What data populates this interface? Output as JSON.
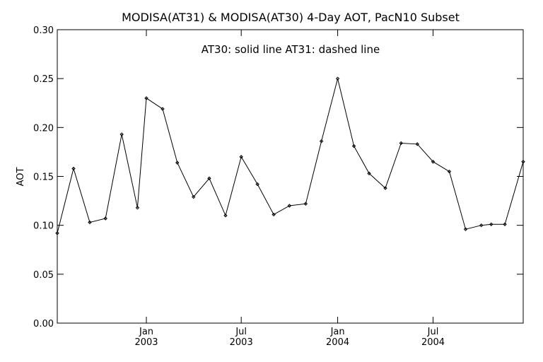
{
  "chart_data": {
    "type": "line",
    "title": "MODISA(AT31) & MODISA(AT30) 4-Day AOT, PacN10 Subset",
    "ylabel": "AOT",
    "xlabel": "",
    "annotation": "AT30: solid line    AT31: dashed line",
    "ylim": [
      0.0,
      0.3
    ],
    "yticks": [
      "0.00",
      "0.05",
      "0.10",
      "0.15",
      "0.20",
      "0.25",
      "0.30"
    ],
    "xlim": [
      "2002-07-15",
      "2004-12-20"
    ],
    "xticks": [
      {
        "date": "2003-01-01",
        "line1": "Jan",
        "line2": "2003"
      },
      {
        "date": "2003-07-01",
        "line1": "Jul",
        "line2": "2003"
      },
      {
        "date": "2004-01-01",
        "line1": "Jan",
        "line2": "2004"
      },
      {
        "date": "2004-07-01",
        "line1": "Jul",
        "line2": "2004"
      }
    ],
    "grid": false,
    "series": [
      {
        "name": "AT30",
        "style": "solid",
        "x": [
          "2002-07-15",
          "2002-08-15",
          "2002-09-15",
          "2002-10-15",
          "2002-11-15",
          "2002-12-15",
          "2003-01-01",
          "2003-02-01",
          "2003-03-01",
          "2003-04-01",
          "2003-05-01",
          "2003-06-01",
          "2003-07-01",
          "2003-08-01",
          "2003-09-01",
          "2003-10-01",
          "2003-11-01",
          "2003-12-01",
          "2004-01-01",
          "2004-02-01",
          "2004-03-01",
          "2004-04-01",
          "2004-05-01",
          "2004-06-01",
          "2004-07-01",
          "2004-08-01",
          "2004-09-01",
          "2004-10-01",
          "2004-10-20",
          "2004-11-15",
          "2004-12-20"
        ],
        "y": [
          0.092,
          0.158,
          0.103,
          0.107,
          0.193,
          0.118,
          0.23,
          0.219,
          0.164,
          0.129,
          0.148,
          0.11,
          0.17,
          0.142,
          0.111,
          0.12,
          0.122,
          0.186,
          0.25,
          0.181,
          0.153,
          0.138,
          0.184,
          0.183,
          0.165,
          0.155,
          0.096,
          0.1,
          0.101,
          0.101,
          0.165
        ]
      }
    ]
  }
}
